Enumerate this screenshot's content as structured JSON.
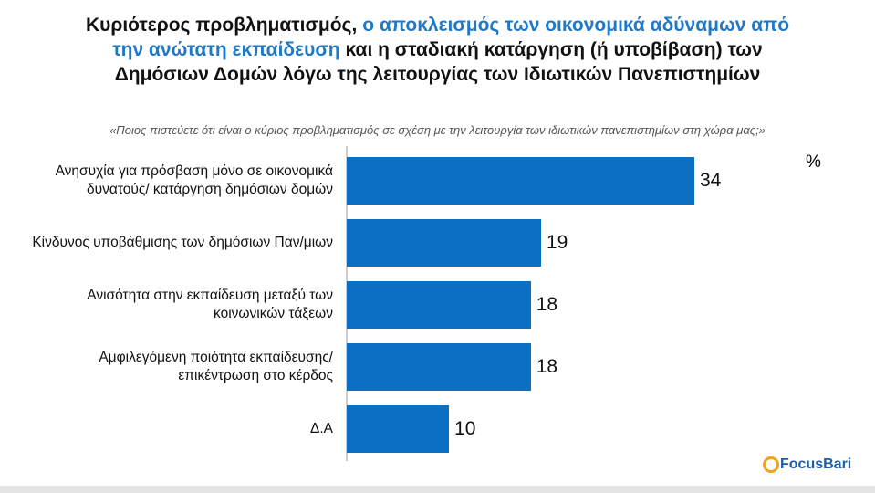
{
  "chart_data": {
    "type": "bar",
    "title_parts": [
      [
        {
          "text": "Κυριότερος προβληματισμός,",
          "color": "#111111"
        },
        {
          "text": "ο αποκλεισμός των οικονομικά αδύναμων από",
          "color": "#1f78c8"
        }
      ],
      [
        {
          "text": "την ανώτατη εκπαίδευση",
          "color": "#1f78c8"
        },
        {
          "text": "και η σταδιακή κατάργηση (ή υποβίβαση) των",
          "color": "#111111"
        }
      ],
      [
        {
          "text": "Δημόσιων Δομών λόγω της λειτουργίας των Ιδιωτικών Πανεπιστημίων",
          "color": "#111111"
        }
      ]
    ],
    "subtitle": "«Ποιος πιστεύετε ότι είναι ο κύριος προβληματισμός σε σχέση με την λειτουργία των ιδιωτικών πανεπιστημίων στη χώρα μας;»",
    "unit": "%",
    "categories": [
      "Ανησυχία για πρόσβαση μόνο σε οικονομικά δυνατούς/ κατάργηση δημόσιων δομών",
      "Κίνδυνος υποβάθμισης των δημόσιων Παν/μιων",
      "Ανισότητα στην εκπαίδευση μεταξύ των κοινωνικών τάξεων",
      "Αμφιλεγόμενη ποιότητα εκπαίδευσης/ επικέντρωση στο κέρδος",
      "Δ.Α"
    ],
    "values": [
      34,
      19,
      18,
      18,
      10
    ],
    "color": "#0c6fc4",
    "logo": "FocusBari"
  }
}
